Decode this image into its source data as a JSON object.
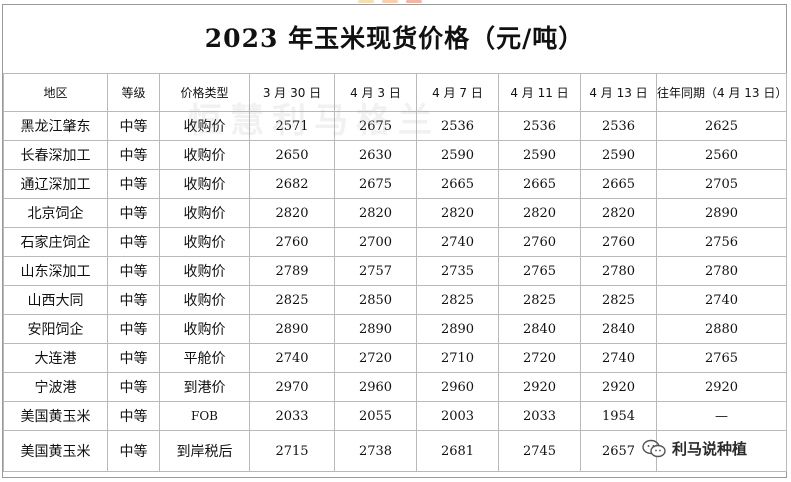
{
  "title": "2023 年玉米现货价格（元/吨）",
  "watermark": "恒慧利马格兰",
  "brand": "利马说种植",
  "headers": [
    "地区",
    "等级",
    "价格类型",
    "3 月 30 日",
    "4 月 3 日",
    "4 月 7 日",
    "4 月 11 日",
    "4 月 13 日",
    "往年同期（4 月 13 日）"
  ],
  "rows": [
    [
      "黑龙江肇东",
      "中等",
      "收购价",
      "2571",
      "2675",
      "2536",
      "2536",
      "2536",
      "2625"
    ],
    [
      "长春深加工",
      "中等",
      "收购价",
      "2650",
      "2630",
      "2590",
      "2590",
      "2590",
      "2560"
    ],
    [
      "通辽深加工",
      "中等",
      "收购价",
      "2682",
      "2675",
      "2665",
      "2665",
      "2665",
      "2705"
    ],
    [
      "北京饲企",
      "中等",
      "收购价",
      "2820",
      "2820",
      "2820",
      "2820",
      "2820",
      "2890"
    ],
    [
      "石家庄饲企",
      "中等",
      "收购价",
      "2760",
      "2700",
      "2740",
      "2760",
      "2760",
      "2756"
    ],
    [
      "山东深加工",
      "中等",
      "收购价",
      "2789",
      "2757",
      "2735",
      "2765",
      "2780",
      "2780"
    ],
    [
      "山西大同",
      "中等",
      "收购价",
      "2825",
      "2850",
      "2825",
      "2825",
      "2825",
      "2740"
    ],
    [
      "安阳饲企",
      "中等",
      "收购价",
      "2890",
      "2890",
      "2890",
      "2840",
      "2840",
      "2880"
    ],
    [
      "大连港",
      "中等",
      "平舱价",
      "2740",
      "2720",
      "2710",
      "2720",
      "2740",
      "2765"
    ],
    [
      "宁波港",
      "中等",
      "到港价",
      "2970",
      "2960",
      "2960",
      "2920",
      "2920",
      "2920"
    ],
    [
      "美国黄玉米",
      "中等",
      "FOB",
      "2033",
      "2055",
      "2003",
      "2033",
      "1954",
      "—"
    ],
    [
      "美国黄玉米",
      "中等",
      "到岸税后",
      "2715",
      "2738",
      "2681",
      "2745",
      "2657",
      ""
    ]
  ]
}
